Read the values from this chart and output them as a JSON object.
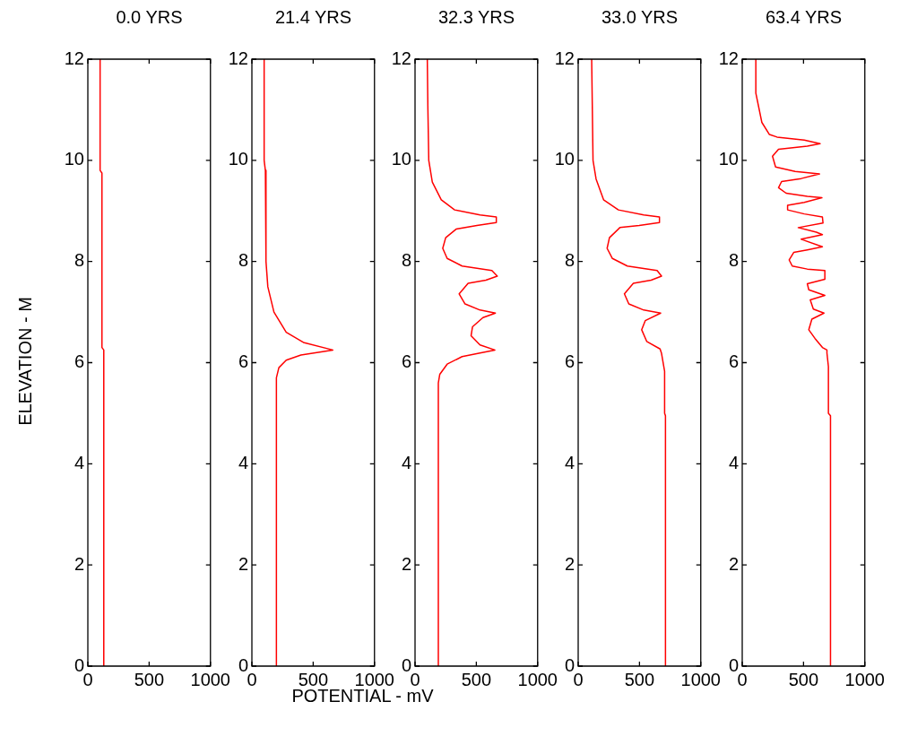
{
  "chart_data": [
    {
      "type": "line",
      "title": "0.0 YRS",
      "ylabel": "ELEVATION - M",
      "color": "#ff0000",
      "marker": "none",
      "grid": false,
      "xlim": [
        0,
        1000
      ],
      "xticks": [
        0,
        500,
        1000
      ],
      "ylim": [
        0,
        12
      ],
      "yticks": [
        0,
        2,
        4,
        6,
        8,
        10,
        12
      ],
      "x": [
        100,
        100,
        115,
        115,
        130,
        130
      ],
      "values": [
        12,
        9.8,
        9.75,
        6.3,
        6.25,
        0
      ]
    },
    {
      "type": "line",
      "title": "21.4 YRS",
      "xlabel": "POTENTIAL - mV",
      "color": "#ff0000",
      "marker": "none",
      "grid": false,
      "xlim": [
        0,
        1000
      ],
      "xticks": [
        0,
        500,
        1000
      ],
      "ylim": [
        0,
        12
      ],
      "yticks": [
        0,
        2,
        4,
        6,
        8,
        10,
        12
      ],
      "x": [
        100,
        100,
        110,
        115,
        130,
        180,
        280,
        420,
        660,
        400,
        280,
        220,
        200,
        200
      ],
      "values": [
        12,
        10,
        9.8,
        8,
        7.5,
        7.0,
        6.6,
        6.4,
        6.25,
        6.15,
        6.05,
        5.9,
        5.7,
        0
      ]
    },
    {
      "type": "line",
      "title": "32.3 YRS",
      "color": "#ff0000",
      "marker": "none",
      "grid": false,
      "xlim": [
        0,
        1000
      ],
      "xticks": [
        0,
        500,
        1000
      ],
      "ylim": [
        0,
        12
      ],
      "yticks": [
        0,
        2,
        4,
        6,
        8,
        10,
        12
      ],
      "x": [
        100,
        105,
        112,
        141,
        214,
        323,
        530,
        663,
        663,
        505,
        335,
        250,
        226,
        262,
        384,
        627,
        671,
        578,
        433,
        360,
        408,
        530,
        656,
        554,
        469,
        457,
        530,
        651,
        530,
        384,
        262,
        202,
        190,
        190
      ],
      "values": [
        12,
        11,
        10,
        9.57,
        9.22,
        9.02,
        8.92,
        8.88,
        8.77,
        8.71,
        8.64,
        8.47,
        8.26,
        8.06,
        7.91,
        7.82,
        7.71,
        7.63,
        7.57,
        7.36,
        7.16,
        7.04,
        6.98,
        6.89,
        6.71,
        6.53,
        6.35,
        6.25,
        6.19,
        6.12,
        5.97,
        5.77,
        5.6,
        0
      ]
    },
    {
      "type": "line",
      "title": "33.0 YRS",
      "color": "#ff0000",
      "marker": "none",
      "grid": false,
      "xlim": [
        0,
        1000
      ],
      "xticks": [
        0,
        500,
        1000
      ],
      "ylim": [
        0,
        12
      ],
      "yticks": [
        0,
        2,
        4,
        6,
        8,
        10,
        12
      ],
      "x": [
        110,
        121,
        146,
        207,
        328,
        535,
        663,
        663,
        498,
        340,
        255,
        236,
        279,
        401,
        644,
        680,
        595,
        450,
        377,
        413,
        535,
        673,
        547,
        518,
        559,
        668,
        680,
        705,
        705,
        712,
        712
      ],
      "values": [
        12,
        10,
        9.63,
        9.22,
        9.02,
        8.92,
        8.88,
        8.77,
        8.71,
        8.67,
        8.47,
        8.26,
        8.06,
        7.91,
        7.82,
        7.71,
        7.63,
        7.57,
        7.36,
        7.16,
        7.04,
        6.98,
        6.83,
        6.65,
        6.42,
        6.27,
        6.18,
        5.83,
        5.0,
        4.95,
        0
      ]
    },
    {
      "type": "line",
      "title": "63.4 YRS",
      "color": "#ff0000",
      "marker": "none",
      "grid": false,
      "xlim": [
        0,
        1000
      ],
      "xticks": [
        0,
        500,
        1000
      ],
      "ylim": [
        0,
        12
      ],
      "yticks": [
        0,
        2,
        4,
        6,
        8,
        10,
        12
      ],
      "x": [
        111,
        111,
        160,
        222,
        284,
        506,
        635,
        531,
        296,
        247,
        272,
        432,
        630,
        481,
        321,
        296,
        358,
        531,
        650,
        506,
        370,
        370,
        506,
        654,
        659,
        457,
        605,
        654,
        481,
        654,
        531,
        420,
        383,
        408,
        531,
        674,
        674,
        531,
        543,
        674,
        555,
        580,
        667,
        568,
        543,
        593,
        654,
        691,
        691,
        703,
        703,
        720,
        720
      ],
      "values": [
        12,
        11.33,
        10.75,
        10.51,
        10.46,
        10.4,
        10.33,
        10.28,
        10.22,
        10.08,
        9.87,
        9.78,
        9.73,
        9.64,
        9.58,
        9.46,
        9.35,
        9.29,
        9.26,
        9.17,
        9.11,
        9.02,
        8.94,
        8.88,
        8.76,
        8.67,
        8.58,
        8.53,
        8.44,
        8.29,
        8.23,
        8.18,
        8.03,
        7.91,
        7.85,
        7.82,
        7.65,
        7.56,
        7.44,
        7.33,
        7.24,
        7.06,
        6.98,
        6.86,
        6.65,
        6.48,
        6.3,
        6.25,
        6.19,
        5.92,
        5.0,
        4.95,
        0
      ]
    }
  ]
}
